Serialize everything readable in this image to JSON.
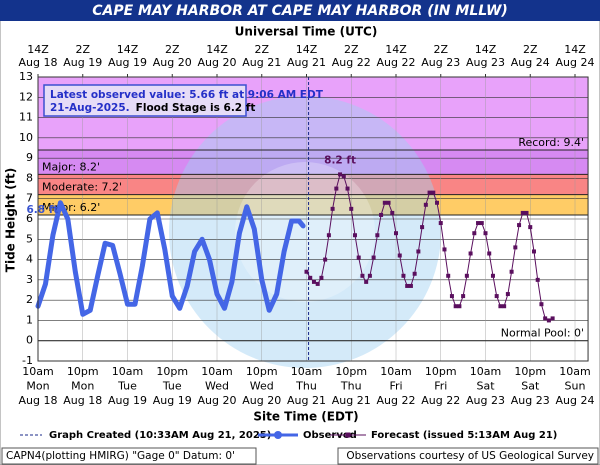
{
  "chart_data": {
    "type": "line",
    "title": "CAPE MAY HARBOR AT CAPE MAY HARBOR (IN MLLW)",
    "x2_axis_label": "Universal Time (UTC)",
    "x_axis_label": "Site Time (EDT)",
    "y_axis_label": "Tide Height (ft)",
    "xlim": [
      "2025-08-18T10:00",
      "2025-08-24T13:30"
    ],
    "ylim": [
      -1,
      13
    ],
    "yticks": [
      -1,
      0,
      1,
      2,
      3,
      4,
      5,
      6,
      7,
      8,
      9,
      10,
      11,
      12,
      13
    ],
    "grid": true,
    "xticks": [
      {
        "value": "2025-08-18T10:00",
        "label": [
          "10am",
          "Mon",
          "Aug 18"
        ]
      },
      {
        "value": "2025-08-18T22:00",
        "label": [
          "10pm",
          "Mon",
          "Aug 18"
        ]
      },
      {
        "value": "2025-08-19T10:00",
        "label": [
          "10am",
          "Tue",
          "Aug 19"
        ]
      },
      {
        "value": "2025-08-19T22:00",
        "label": [
          "10pm",
          "Tue",
          "Aug 19"
        ]
      },
      {
        "value": "2025-08-20T10:00",
        "label": [
          "10am",
          "Wed",
          "Aug 20"
        ]
      },
      {
        "value": "2025-08-20T22:00",
        "label": [
          "10pm",
          "Wed",
          "Aug 20"
        ]
      },
      {
        "value": "2025-08-21T10:00",
        "label": [
          "10am",
          "Thu",
          "Aug 21"
        ]
      },
      {
        "value": "2025-08-21T22:00",
        "label": [
          "10pm",
          "Thu",
          "Aug 21"
        ]
      },
      {
        "value": "2025-08-22T10:00",
        "label": [
          "10am",
          "Fri",
          "Aug 22"
        ]
      },
      {
        "value": "2025-08-22T22:00",
        "label": [
          "10pm",
          "Fri",
          "Aug 22"
        ]
      },
      {
        "value": "2025-08-23T10:00",
        "label": [
          "10am",
          "Sat",
          "Aug 23"
        ]
      },
      {
        "value": "2025-08-23T22:00",
        "label": [
          "10pm",
          "Sat",
          "Aug 23"
        ]
      },
      {
        "value": "2025-08-24T10:00",
        "label": [
          "10am",
          "Sun",
          "Aug 24"
        ]
      }
    ],
    "x2ticks": [
      {
        "value": "2025-08-18T10:00",
        "label": [
          "14Z",
          "Aug 18"
        ]
      },
      {
        "value": "2025-08-18T22:00",
        "label": [
          "2Z",
          "Aug 19"
        ]
      },
      {
        "value": "2025-08-19T10:00",
        "label": [
          "14Z",
          "Aug 19"
        ]
      },
      {
        "value": "2025-08-19T22:00",
        "label": [
          "2Z",
          "Aug 20"
        ]
      },
      {
        "value": "2025-08-20T10:00",
        "label": [
          "14Z",
          "Aug 20"
        ]
      },
      {
        "value": "2025-08-20T22:00",
        "label": [
          "2Z",
          "Aug 21"
        ]
      },
      {
        "value": "2025-08-21T10:00",
        "label": [
          "14Z",
          "Aug 21"
        ]
      },
      {
        "value": "2025-08-21T22:00",
        "label": [
          "2Z",
          "Aug 22"
        ]
      },
      {
        "value": "2025-08-22T10:00",
        "label": [
          "14Z",
          "Aug 22"
        ]
      },
      {
        "value": "2025-08-22T22:00",
        "label": [
          "2Z",
          "Aug 23"
        ]
      },
      {
        "value": "2025-08-23T10:00",
        "label": [
          "14Z",
          "Aug 23"
        ]
      },
      {
        "value": "2025-08-23T22:00",
        "label": [
          "2Z",
          "Aug 24"
        ]
      },
      {
        "value": "2025-08-24T10:00",
        "label": [
          "14Z",
          "Aug 24"
        ]
      }
    ],
    "thresholds": [
      {
        "label": "Normal Pool: 0'",
        "value": 0,
        "align": "right"
      },
      {
        "label": "Minor: 6.2'",
        "value": 6.2,
        "align": "left",
        "band_color": "#ffcc66"
      },
      {
        "label": "Moderate: 7.2'",
        "value": 7.2,
        "align": "left",
        "band_color": "#f98585"
      },
      {
        "label": "Major: 8.2'",
        "value": 8.2,
        "align": "left",
        "band_color": "#d68af2"
      },
      {
        "label": "Record: 9.4'",
        "value": 9.4,
        "align": "right",
        "band_color": "#e8a2fa"
      }
    ],
    "note": {
      "lines": [
        "Latest observed value: 5.66 ft at 9:06 AM EDT",
        "21-Aug-2025."
      ],
      "flood_stage": "Flood Stage is 6.2 ft"
    },
    "graph_created": {
      "name": "Graph Created (10:33AM Aug 21, 2025)",
      "x": "2025-08-21T10:33"
    },
    "series": [
      {
        "name": "Observed",
        "color": "#4466e6",
        "peak_label": "6.8 ft",
        "x": [
          "2025-08-18T10:00",
          "2025-08-18T12:00",
          "2025-08-18T14:00",
          "2025-08-18T16:00",
          "2025-08-18T18:00",
          "2025-08-18T20:00",
          "2025-08-18T22:00",
          "2025-08-19T00:00",
          "2025-08-19T02:00",
          "2025-08-19T04:00",
          "2025-08-19T06:00",
          "2025-08-19T08:00",
          "2025-08-19T10:00",
          "2025-08-19T12:00",
          "2025-08-19T14:00",
          "2025-08-19T16:00",
          "2025-08-19T18:00",
          "2025-08-19T20:00",
          "2025-08-19T22:00",
          "2025-08-20T00:00",
          "2025-08-20T02:00",
          "2025-08-20T04:00",
          "2025-08-20T06:00",
          "2025-08-20T08:00",
          "2025-08-20T10:00",
          "2025-08-20T12:00",
          "2025-08-20T14:00",
          "2025-08-20T16:00",
          "2025-08-20T18:00",
          "2025-08-20T20:00",
          "2025-08-20T22:00",
          "2025-08-21T00:00",
          "2025-08-21T02:00",
          "2025-08-21T04:00",
          "2025-08-21T06:00",
          "2025-08-21T08:00",
          "2025-08-21T09:06"
        ],
        "values": [
          1.7,
          2.8,
          5.2,
          6.8,
          6.0,
          3.4,
          1.3,
          1.5,
          3.2,
          4.8,
          4.7,
          3.3,
          1.8,
          1.8,
          3.7,
          6.0,
          6.3,
          4.5,
          2.2,
          1.6,
          2.7,
          4.4,
          5.0,
          4.0,
          2.3,
          1.6,
          2.9,
          5.3,
          6.6,
          5.5,
          3.0,
          1.5,
          2.3,
          4.4,
          5.9,
          5.9,
          5.66
        ]
      },
      {
        "name": "Forecast (issued 5:13AM Aug 21)",
        "color": "#5a0f5e",
        "peak_label": "8.2 ft",
        "x": [
          "2025-08-21T10:00",
          "2025-08-21T11:00",
          "2025-08-21T12:00",
          "2025-08-21T13:00",
          "2025-08-21T14:00",
          "2025-08-21T15:00",
          "2025-08-21T16:00",
          "2025-08-21T17:00",
          "2025-08-21T18:00",
          "2025-08-21T19:00",
          "2025-08-21T20:00",
          "2025-08-21T21:00",
          "2025-08-21T22:00",
          "2025-08-21T23:00",
          "2025-08-22T00:00",
          "2025-08-22T01:00",
          "2025-08-22T02:00",
          "2025-08-22T03:00",
          "2025-08-22T04:00",
          "2025-08-22T05:00",
          "2025-08-22T06:00",
          "2025-08-22T07:00",
          "2025-08-22T08:00",
          "2025-08-22T09:00",
          "2025-08-22T10:00",
          "2025-08-22T11:00",
          "2025-08-22T12:00",
          "2025-08-22T13:00",
          "2025-08-22T14:00",
          "2025-08-22T15:00",
          "2025-08-22T16:00",
          "2025-08-22T17:00",
          "2025-08-22T18:00",
          "2025-08-22T19:00",
          "2025-08-22T20:00",
          "2025-08-22T21:00",
          "2025-08-22T22:00",
          "2025-08-22T23:00",
          "2025-08-23T00:00",
          "2025-08-23T01:00",
          "2025-08-23T02:00",
          "2025-08-23T03:00",
          "2025-08-23T04:00",
          "2025-08-23T05:00",
          "2025-08-23T06:00",
          "2025-08-23T07:00",
          "2025-08-23T08:00",
          "2025-08-23T09:00",
          "2025-08-23T10:00",
          "2025-08-23T11:00",
          "2025-08-23T12:00",
          "2025-08-23T13:00",
          "2025-08-23T14:00",
          "2025-08-23T15:00",
          "2025-08-23T16:00",
          "2025-08-23T17:00",
          "2025-08-23T18:00",
          "2025-08-23T19:00",
          "2025-08-23T20:00",
          "2025-08-23T21:00",
          "2025-08-23T22:00",
          "2025-08-23T23:00",
          "2025-08-24T00:00",
          "2025-08-24T01:00",
          "2025-08-24T02:00",
          "2025-08-24T03:00",
          "2025-08-24T04:00"
        ],
        "values": [
          3.4,
          3.1,
          2.9,
          2.8,
          3.1,
          4.0,
          5.2,
          6.5,
          7.5,
          8.2,
          8.1,
          7.5,
          6.5,
          5.2,
          4.1,
          3.2,
          2.9,
          3.2,
          4.1,
          5.2,
          6.2,
          6.8,
          6.8,
          6.3,
          5.3,
          4.2,
          3.2,
          2.7,
          2.7,
          3.3,
          4.4,
          5.6,
          6.7,
          7.3,
          7.3,
          6.8,
          5.8,
          4.5,
          3.2,
          2.2,
          1.7,
          1.7,
          2.2,
          3.2,
          4.3,
          5.3,
          5.8,
          5.8,
          5.3,
          4.3,
          3.2,
          2.2,
          1.7,
          1.7,
          2.3,
          3.4,
          4.6,
          5.7,
          6.3,
          6.3,
          5.6,
          4.4,
          3.0,
          1.8,
          1.1,
          1.0,
          1.1
        ]
      }
    ],
    "footer": {
      "left": "CAPN4(plotting HMIRG) \"Gage 0\" Datum: 0'",
      "right": "Observations courtesy of US Geological Survey"
    }
  }
}
